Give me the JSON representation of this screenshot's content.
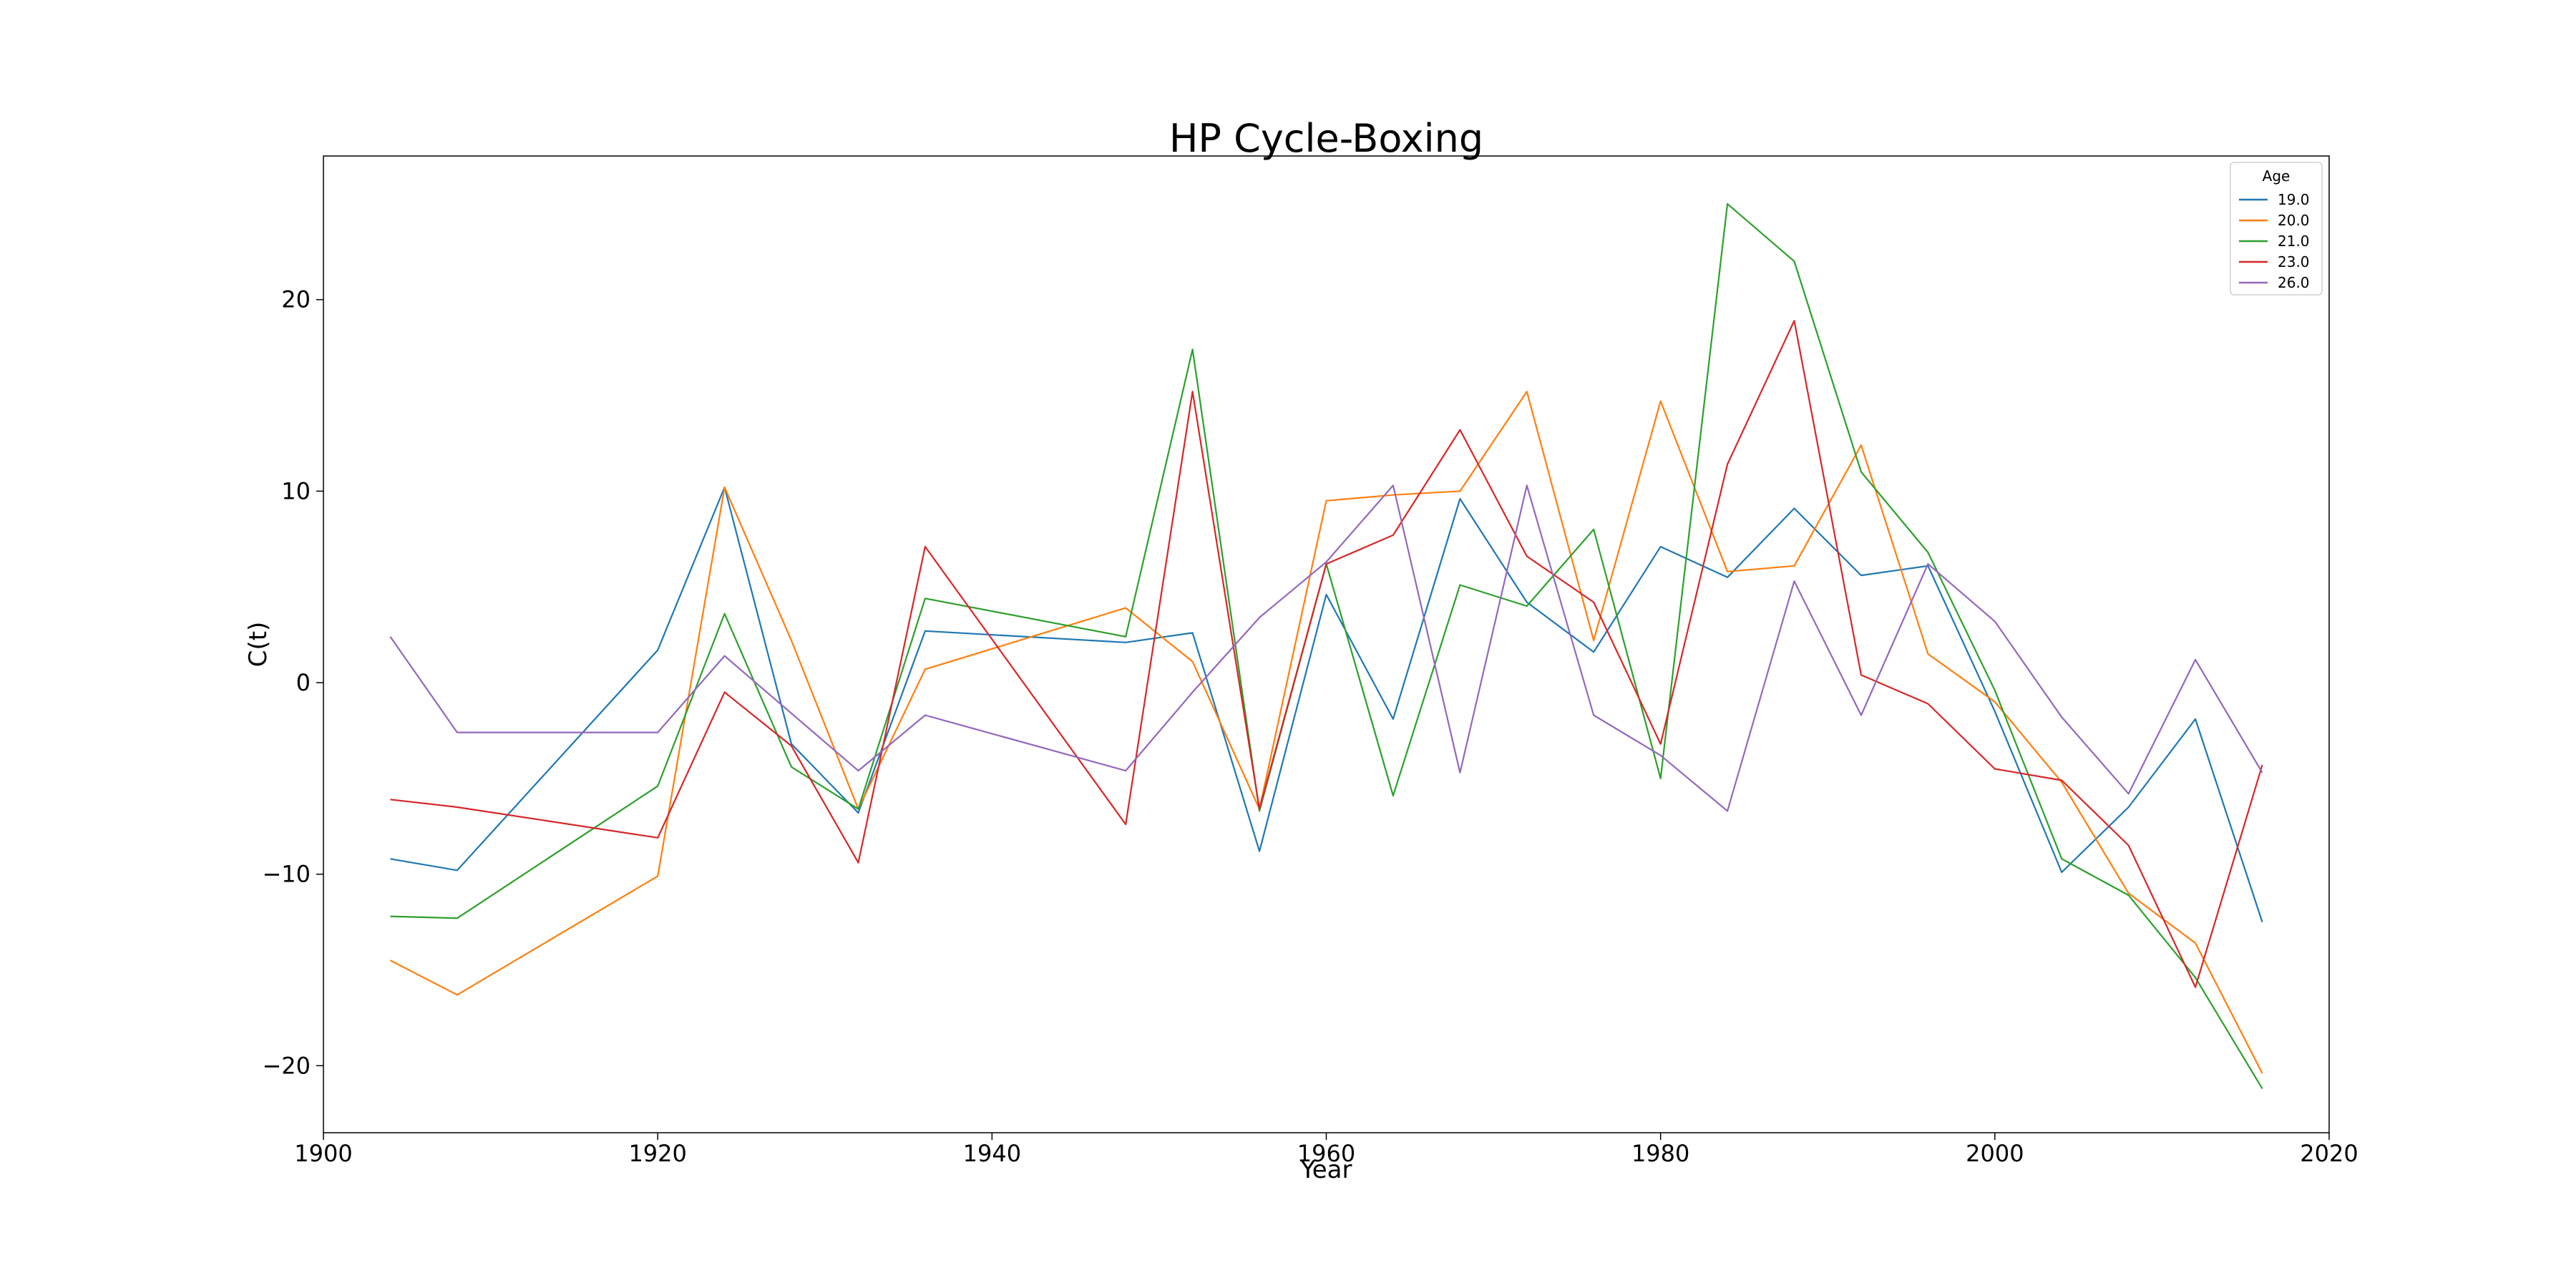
{
  "chart_data": {
    "type": "line",
    "title": "HP Cycle-Boxing",
    "xlabel": "Year",
    "ylabel": "C(t)",
    "xlim": [
      1900,
      2020
    ],
    "ylim": [
      -23.5,
      27.5
    ],
    "xticks": [
      1900,
      1920,
      1940,
      1960,
      1980,
      2000,
      2020
    ],
    "yticks": [
      -20,
      -10,
      0,
      10,
      20
    ],
    "grid": false,
    "legend": {
      "title": "Age",
      "placement": "top-right"
    },
    "series": [
      {
        "name": "19.0",
        "color": "#1f77b4",
        "points": [
          [
            1904,
            -9.2
          ],
          [
            1908,
            -9.8
          ],
          [
            1920,
            1.7
          ],
          [
            1924,
            10.2
          ],
          [
            1928,
            -3.2
          ],
          [
            1932,
            -6.8
          ],
          [
            1936,
            2.7
          ],
          [
            1948,
            2.1
          ],
          [
            1952,
            2.6
          ],
          [
            1956,
            -8.8
          ],
          [
            1960,
            4.6
          ],
          [
            1964,
            -1.9
          ],
          [
            1968,
            9.6
          ],
          [
            1972,
            4.2
          ],
          [
            1976,
            1.6
          ],
          [
            1980,
            7.1
          ],
          [
            1984,
            5.5
          ],
          [
            1988,
            9.1
          ],
          [
            1992,
            5.6
          ],
          [
            1996,
            6.1
          ],
          [
            2000,
            -1.5
          ],
          [
            2004,
            -9.9
          ],
          [
            2008,
            -6.5
          ],
          [
            2012,
            -1.9
          ],
          [
            2016,
            -12.5
          ]
        ]
      },
      {
        "name": "20.0",
        "color": "#ff7f0e",
        "points": [
          [
            1904,
            -14.5
          ],
          [
            1908,
            -16.3
          ],
          [
            1920,
            -10.1
          ],
          [
            1924,
            10.2
          ],
          [
            1928,
            2.2
          ],
          [
            1932,
            -6.6
          ],
          [
            1936,
            0.7
          ],
          [
            1948,
            3.9
          ],
          [
            1952,
            1.1
          ],
          [
            1956,
            -6.6
          ],
          [
            1960,
            9.5
          ],
          [
            1964,
            9.8
          ],
          [
            1968,
            10.0
          ],
          [
            1972,
            15.2
          ],
          [
            1976,
            2.2
          ],
          [
            1980,
            14.7
          ],
          [
            1984,
            5.8
          ],
          [
            1988,
            6.1
          ],
          [
            1992,
            12.4
          ],
          [
            1996,
            1.5
          ],
          [
            2000,
            -1.0
          ],
          [
            2004,
            -5.2
          ],
          [
            2008,
            -11.0
          ],
          [
            2012,
            -13.6
          ],
          [
            2016,
            -20.4
          ]
        ]
      },
      {
        "name": "21.0",
        "color": "#2ca02c",
        "points": [
          [
            1904,
            -12.2
          ],
          [
            1908,
            -12.3
          ],
          [
            1920,
            -5.4
          ],
          [
            1924,
            3.6
          ],
          [
            1928,
            -4.4
          ],
          [
            1932,
            -6.6
          ],
          [
            1936,
            4.4
          ],
          [
            1948,
            2.4
          ],
          [
            1952,
            17.4
          ],
          [
            1956,
            -6.7
          ],
          [
            1960,
            6.2
          ],
          [
            1964,
            -5.9
          ],
          [
            1968,
            5.1
          ],
          [
            1972,
            4.0
          ],
          [
            1976,
            8.0
          ],
          [
            1980,
            -5.0
          ],
          [
            1984,
            25.0
          ],
          [
            1988,
            22.0
          ],
          [
            1992,
            11.0
          ],
          [
            1996,
            6.8
          ],
          [
            2000,
            -0.4
          ],
          [
            2004,
            -9.2
          ],
          [
            2008,
            -11.1
          ],
          [
            2012,
            -15.4
          ],
          [
            2016,
            -21.2
          ]
        ]
      },
      {
        "name": "23.0",
        "color": "#d62728",
        "points": [
          [
            1904,
            -6.1
          ],
          [
            1908,
            -6.5
          ],
          [
            1920,
            -8.1
          ],
          [
            1924,
            -0.5
          ],
          [
            1928,
            -3.3
          ],
          [
            1932,
            -9.4
          ],
          [
            1936,
            7.1
          ],
          [
            1948,
            -7.4
          ],
          [
            1952,
            15.2
          ],
          [
            1956,
            -6.6
          ],
          [
            1960,
            6.2
          ],
          [
            1964,
            7.7
          ],
          [
            1968,
            13.2
          ],
          [
            1972,
            6.6
          ],
          [
            1976,
            4.2
          ],
          [
            1980,
            -3.2
          ],
          [
            1984,
            11.4
          ],
          [
            1988,
            18.9
          ],
          [
            1992,
            0.4
          ],
          [
            1996,
            -1.1
          ],
          [
            2000,
            -4.5
          ],
          [
            2004,
            -5.1
          ],
          [
            2008,
            -8.5
          ],
          [
            2012,
            -15.9
          ],
          [
            2016,
            -4.3
          ]
        ]
      },
      {
        "name": "26.0",
        "color": "#9467bd",
        "points": [
          [
            1904,
            2.4
          ],
          [
            1908,
            -2.6
          ],
          [
            1920,
            -2.6
          ],
          [
            1924,
            1.4
          ],
          [
            1928,
            -1.6
          ],
          [
            1932,
            -4.6
          ],
          [
            1936,
            -1.7
          ],
          [
            1948,
            -4.6
          ],
          [
            1952,
            -0.5
          ],
          [
            1956,
            3.4
          ],
          [
            1960,
            6.3
          ],
          [
            1964,
            10.3
          ],
          [
            1968,
            -4.7
          ],
          [
            1972,
            10.3
          ],
          [
            1976,
            -1.7
          ],
          [
            1980,
            -3.8
          ],
          [
            1984,
            -6.7
          ],
          [
            1988,
            5.3
          ],
          [
            1992,
            -1.7
          ],
          [
            1996,
            6.2
          ],
          [
            2000,
            3.2
          ],
          [
            2004,
            -1.8
          ],
          [
            2008,
            -5.8
          ],
          [
            2012,
            1.2
          ],
          [
            2016,
            -4.7
          ]
        ]
      }
    ]
  }
}
